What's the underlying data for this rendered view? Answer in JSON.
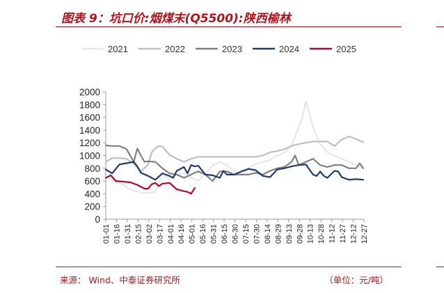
{
  "figure": {
    "title": "图表 9：坑口价:烟煤末(Q5500):陕西榆林",
    "source": "来源：    Wind、中泰证券研究所",
    "unit": "（单位：元/吨）"
  },
  "chart_data": {
    "type": "line",
    "title": "",
    "xlabel": "",
    "ylabel": "",
    "ylim": [
      0,
      2000
    ],
    "yticks": [
      0,
      200,
      400,
      600,
      800,
      1000,
      1200,
      1400,
      1600,
      1800,
      2000
    ],
    "x_tick_labels": [
      "01-01",
      "01-16",
      "01-31",
      "02-15",
      "03-02",
      "03-17",
      "04-01",
      "04-16",
      "05-01",
      "05-16",
      "05-31",
      "06-15",
      "06-30",
      "07-15",
      "07-30",
      "08-14",
      "08-29",
      "09-13",
      "09-28",
      "10-13",
      "10-28",
      "11-12",
      "11-27",
      "12-12",
      "12-27"
    ],
    "x_range_days": [
      1,
      361
    ],
    "legend_position": "top",
    "grid": false,
    "series": [
      {
        "name": "2021",
        "color": "#e6e6e6",
        "x": [
          1,
          10,
          20,
          30,
          40,
          50,
          60,
          70,
          80,
          90,
          100,
          110,
          120,
          130,
          140,
          150,
          160,
          170,
          180,
          190,
          200,
          210,
          220,
          230,
          240,
          250,
          260,
          270,
          275,
          280,
          285,
          290,
          295,
          300,
          310,
          320,
          330,
          340,
          350,
          360
        ],
        "y": [
          660,
          620,
          580,
          500,
          450,
          420,
          410,
          430,
          700,
          650,
          700,
          720,
          650,
          600,
          720,
          850,
          900,
          850,
          750,
          700,
          800,
          870,
          900,
          930,
          1000,
          1050,
          1150,
          1450,
          1600,
          1850,
          1650,
          1450,
          1300,
          1180,
          1050,
          1000,
          950,
          900,
          850,
          800
        ]
      },
      {
        "name": "2022",
        "color": "#bfbfbf",
        "x": [
          1,
          10,
          20,
          30,
          40,
          50,
          60,
          65,
          70,
          75,
          80,
          90,
          100,
          110,
          120,
          130,
          140,
          150,
          160,
          170,
          180,
          190,
          200,
          210,
          220,
          230,
          240,
          250,
          260,
          270,
          280,
          290,
          300,
          310,
          320,
          330,
          340,
          350,
          360
        ],
        "y": [
          900,
          960,
          960,
          950,
          870,
          750,
          860,
          1050,
          1110,
          1150,
          1140,
          1010,
          950,
          900,
          950,
          980,
          980,
          980,
          980,
          980,
          980,
          980,
          980,
          980,
          1000,
          1050,
          1070,
          1100,
          1150,
          1180,
          1200,
          1220,
          1220,
          1220,
          1150,
          1250,
          1300,
          1260,
          1210
        ]
      },
      {
        "name": "2023",
        "color": "#7f7f7f",
        "x": [
          1,
          10,
          20,
          30,
          40,
          45,
          50,
          55,
          60,
          70,
          80,
          90,
          100,
          110,
          120,
          125,
          130,
          140,
          150,
          160,
          170,
          180,
          190,
          200,
          210,
          220,
          230,
          240,
          250,
          260,
          265,
          270,
          280,
          290,
          300,
          310,
          320,
          330,
          340,
          350,
          355,
          360
        ],
        "y": [
          1160,
          1150,
          1150,
          1100,
          900,
          1110,
          1000,
          900,
          910,
          900,
          800,
          720,
          700,
          650,
          700,
          730,
          750,
          700,
          600,
          750,
          750,
          700,
          700,
          700,
          730,
          700,
          760,
          800,
          820,
          900,
          1000,
          850,
          900,
          950,
          850,
          820,
          850,
          850,
          800,
          800,
          880,
          800
        ]
      },
      {
        "name": "2024",
        "color": "#1f3a6e",
        "x": [
          1,
          10,
          20,
          30,
          40,
          45,
          50,
          60,
          70,
          80,
          90,
          95,
          100,
          110,
          115,
          120,
          125,
          130,
          140,
          150,
          160,
          165,
          170,
          180,
          190,
          200,
          210,
          220,
          230,
          240,
          250,
          260,
          270,
          280,
          290,
          295,
          300,
          305,
          310,
          320,
          325,
          330,
          340,
          350,
          360
        ],
        "y": [
          780,
          720,
          860,
          880,
          900,
          830,
          730,
          680,
          620,
          720,
          680,
          650,
          760,
          820,
          720,
          850,
          830,
          840,
          700,
          690,
          650,
          760,
          700,
          700,
          750,
          790,
          770,
          680,
          660,
          780,
          800,
          830,
          850,
          860,
          700,
          680,
          750,
          680,
          650,
          760,
          750,
          660,
          620,
          630,
          620
        ]
      },
      {
        "name": "2025",
        "color": "#c00030",
        "x": [
          1,
          8,
          15,
          25,
          35,
          45,
          55,
          60,
          65,
          70,
          75,
          80,
          90,
          100,
          110,
          115,
          120,
          125
        ],
        "y": [
          650,
          690,
          600,
          590,
          580,
          540,
          480,
          480,
          550,
          570,
          520,
          560,
          570,
          470,
          440,
          430,
          400,
          490
        ]
      }
    ]
  }
}
